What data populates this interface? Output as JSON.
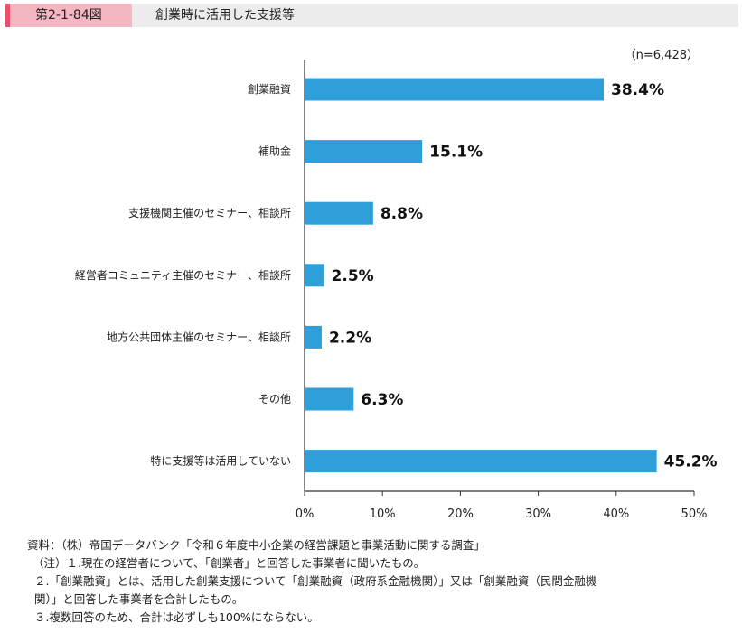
{
  "header": {
    "figure_number": "第2-1-84図",
    "title": "創業時に活用した支援等"
  },
  "sample_note": "（n=6,428）",
  "chart_data": {
    "type": "bar",
    "orientation": "horizontal",
    "categories": [
      "創業融資",
      "補助金",
      "支援機関主催のセミナー、相談所",
      "経営者コミュニティ主催のセミナー、相談所",
      "地方公共団体主催のセミナー、相談所",
      "その他",
      "特に支援等は活用していない"
    ],
    "values": [
      38.4,
      15.1,
      8.8,
      2.5,
      2.2,
      6.3,
      45.2
    ],
    "value_labels": [
      "38.4%",
      "15.1%",
      "8.8%",
      "2.5%",
      "2.2%",
      "6.3%",
      "45.2%"
    ],
    "xlim": [
      0,
      50
    ],
    "ticks": [
      0,
      10,
      20,
      30,
      40,
      50
    ],
    "tick_labels": [
      "0%",
      "10%",
      "20%",
      "30%",
      "40%",
      "50%"
    ],
    "bar_color": "#2e9fd8",
    "grid": false
  },
  "notes": [
    "資料：（株）帝国データバンク「令和６年度中小企業の経営課題と事業活動に関する調査」",
    "（注）１.現在の経営者について、「創業者」と回答した事業者に聞いたもの。",
    "２.「創業融資」とは、活用した創業支援について「創業融資（政府系金融機関）」又は「創業融資（民間金融機",
    "関）」と回答した事業者を合計したもの。",
    "３.複数回答のため、合計は必ずしも100%にならない。"
  ],
  "colors": {
    "accent_pink": "#e8506b",
    "tag_pink": "#f4b6c1",
    "header_gray": "#ececec"
  }
}
